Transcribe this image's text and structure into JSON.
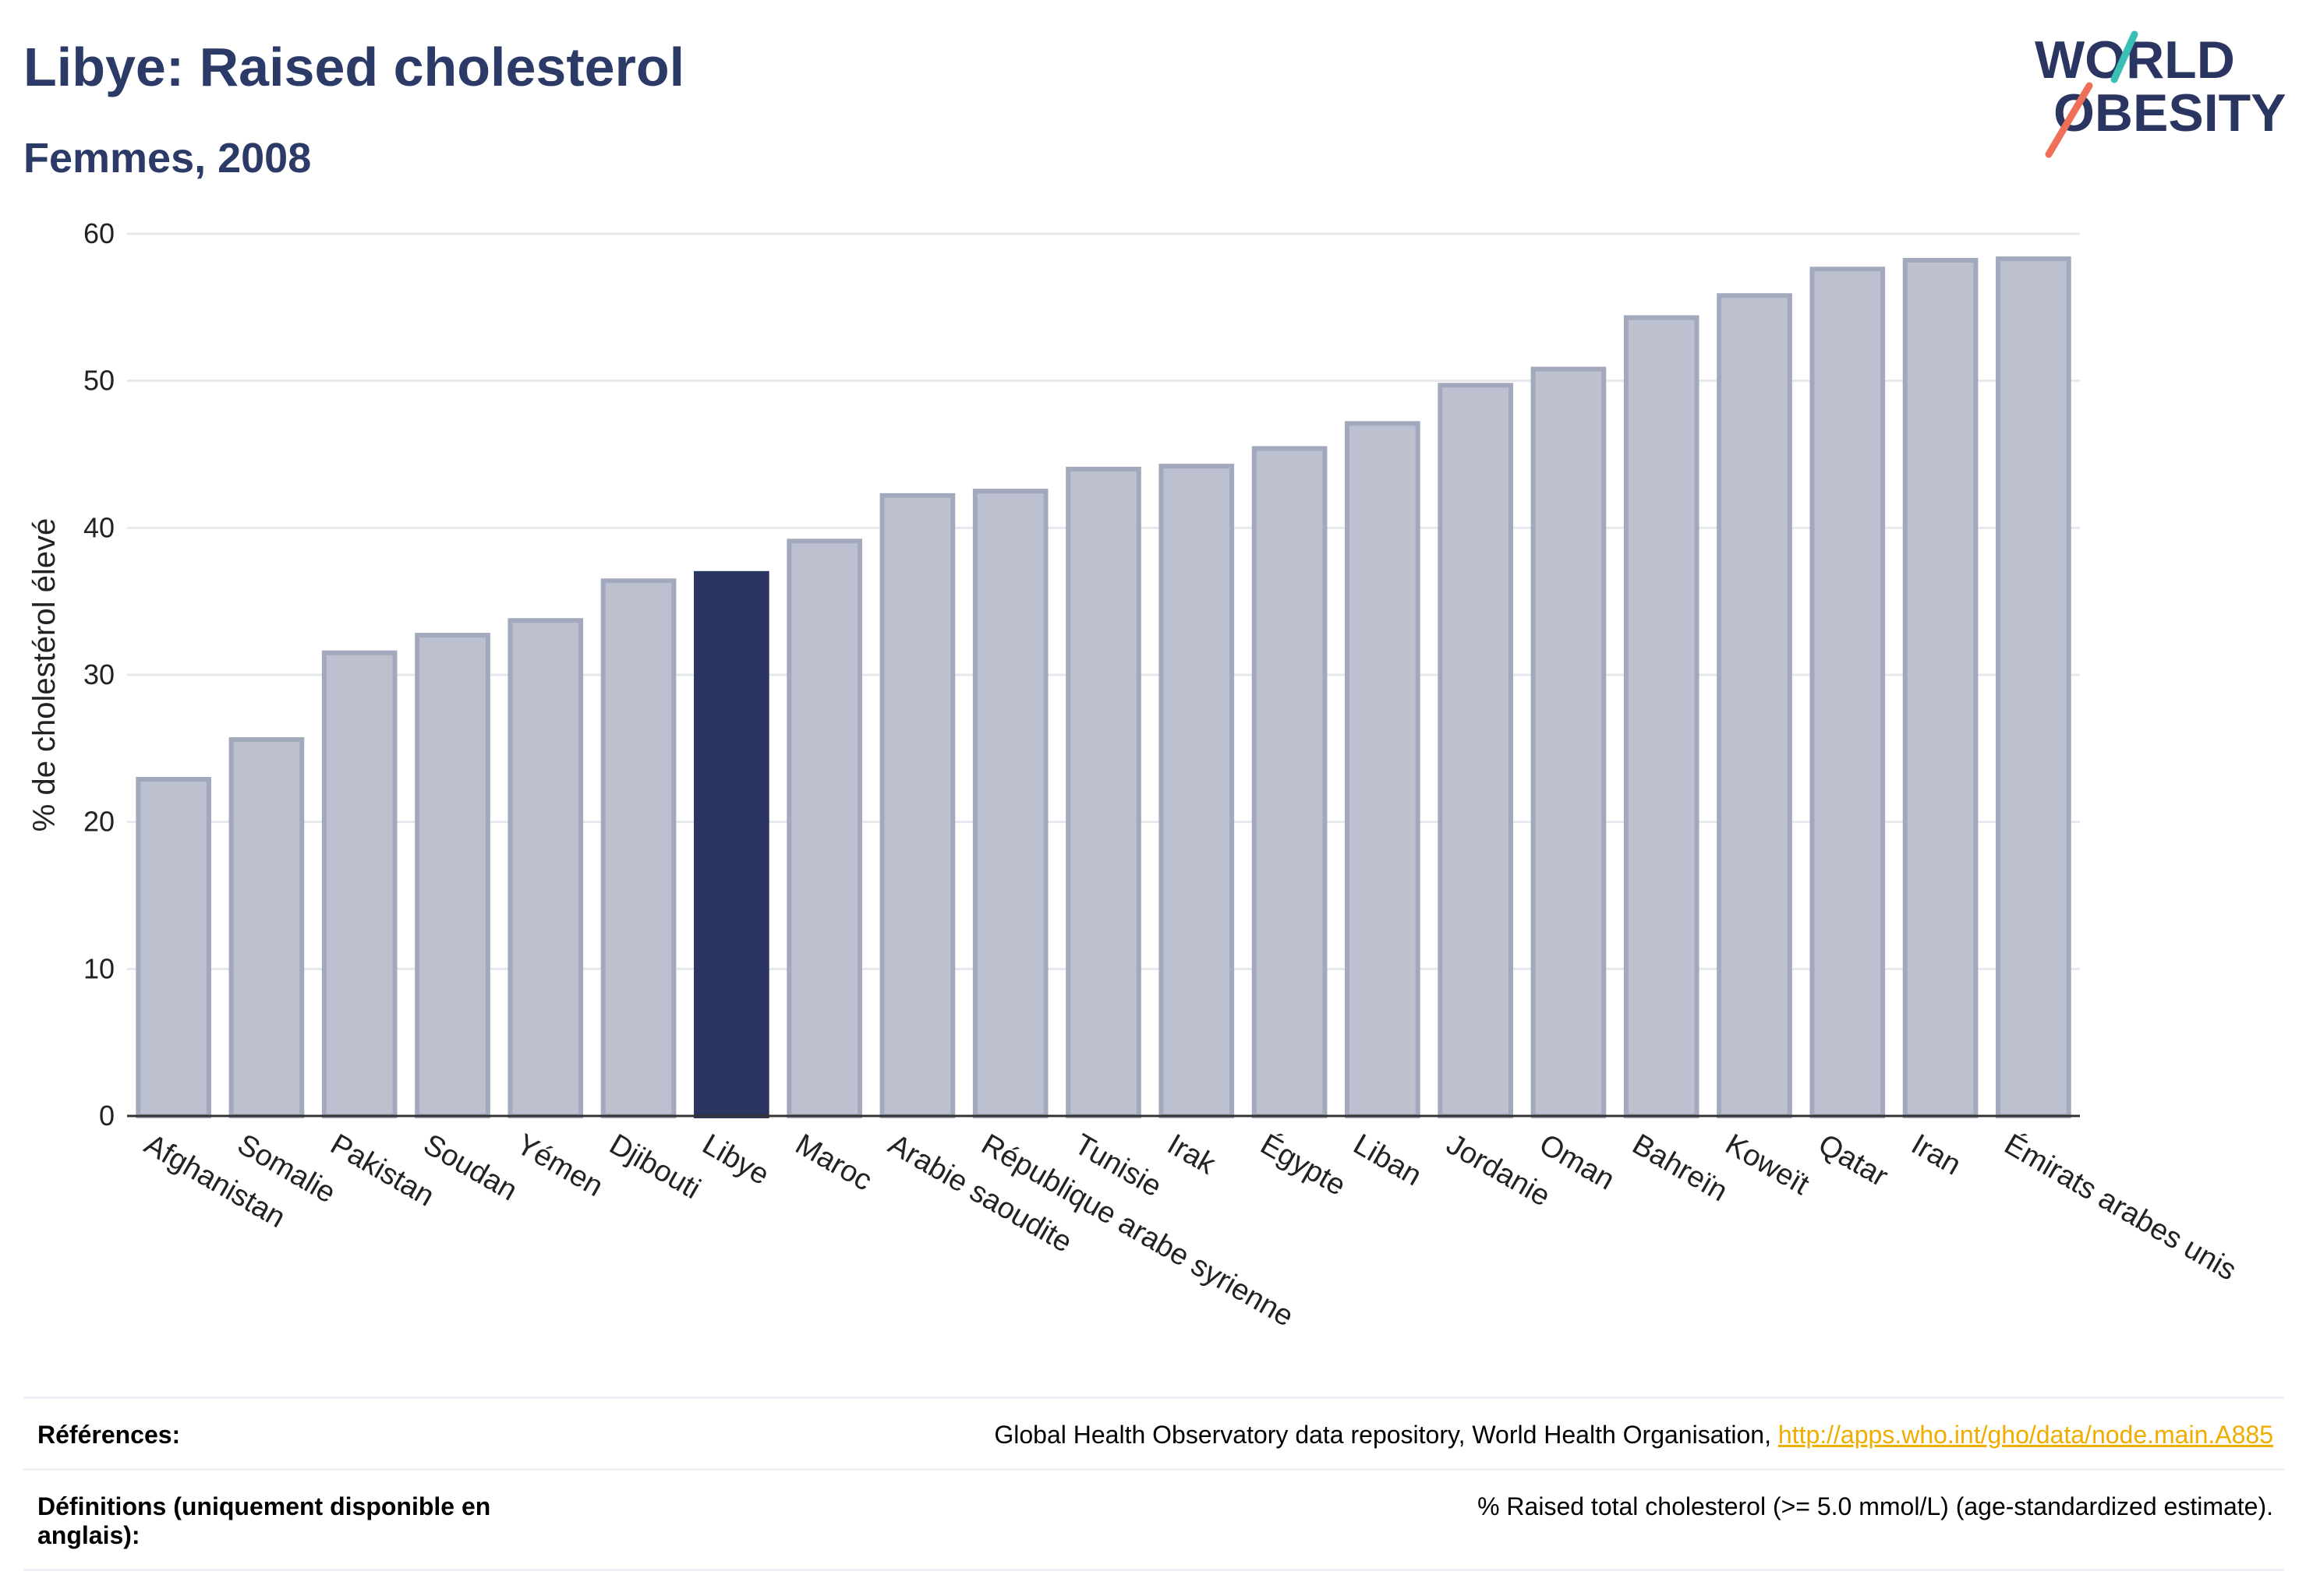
{
  "header": {
    "title": "Libye: Raised cholesterol",
    "subtitle": "Femmes, 2008"
  },
  "logo": {
    "line1": "WORLD",
    "line2": "OBESITY"
  },
  "chart_data": {
    "type": "bar",
    "categories": [
      "Afghanistan",
      "Somalie",
      "Pakistan",
      "Soudan",
      "Yémen",
      "Djibouti",
      "Libye",
      "Maroc",
      "Arabie saoudite",
      "République arabe syrienne",
      "Tunisie",
      "Irak",
      "Égypte",
      "Liban",
      "Jordanie",
      "Oman",
      "Bahreïn",
      "Koweït",
      "Qatar",
      "Iran",
      "Émirats arabes unis"
    ],
    "values": [
      22.9,
      25.6,
      31.5,
      32.7,
      33.7,
      36.4,
      36.9,
      39.1,
      42.2,
      42.5,
      44.0,
      44.2,
      45.4,
      47.1,
      49.7,
      50.8,
      54.3,
      55.8,
      57.6,
      58.2,
      58.3
    ],
    "highlight": "Libye",
    "ylabel": "% de cholestérol élevé",
    "ylim": [
      0,
      60
    ],
    "yticks": [
      0,
      10,
      20,
      30,
      40,
      50,
      60
    ],
    "grid": true,
    "colors": {
      "highlight": "#2b3561",
      "bar_fill": "#bdc1cf",
      "bar_edge": "#a3a9bc",
      "grid": "#e6e8ee",
      "axis": "#333333"
    }
  },
  "footer": {
    "rows": [
      {
        "label": "Références:",
        "text": "Global Health Observatory data repository, World Health Organisation,",
        "link": "http://apps.who.int/gho/data/node.main.A885"
      },
      {
        "label": "Définitions (uniquement disponible en anglais):",
        "text": "% Raised total cholesterol (>= 5.0 mmol/L) (age-standardized estimate).",
        "link": ""
      }
    ]
  }
}
